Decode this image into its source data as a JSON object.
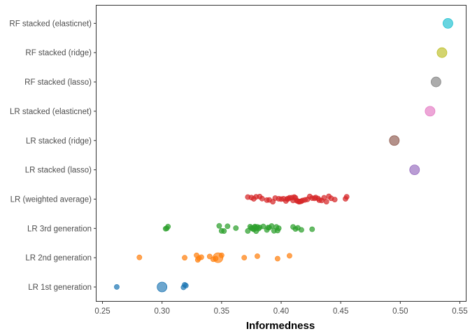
{
  "chart_data": {
    "type": "scatter",
    "title": "",
    "xlabel": "Informedness",
    "ylabel": "",
    "xlim": [
      0.245,
      0.555
    ],
    "x_ticks": [
      "0.25",
      "0.30",
      "0.35",
      "0.40",
      "0.45",
      "0.50",
      "0.55"
    ],
    "x_tick_values": [
      0.25,
      0.3,
      0.35,
      0.4,
      0.45,
      0.5,
      0.55
    ],
    "grid": false,
    "legend": "none",
    "categories": [
      "LR 1st generation",
      "LR 2nd generation",
      "LR 3rd generation",
      "LR (weighted average)",
      "LR stacked (lasso)",
      "LR stacked (ridge)",
      "LR stacked (elasticnet)",
      "RF stacked (lasso)",
      "RF stacked (ridge)",
      "RF stacked (elasticnet)"
    ],
    "series": [
      {
        "category": "LR 1st generation",
        "color": "#1f77b4",
        "points": [
          0.262,
          0.318,
          0.319,
          0.32
        ],
        "highlight": 0.3
      },
      {
        "category": "LR 2nd generation",
        "color": "#ff7f0e",
        "points": [
          0.281,
          0.319,
          0.329,
          0.33,
          0.331,
          0.333,
          0.34,
          0.343,
          0.345,
          0.35,
          0.369,
          0.38,
          0.397,
          0.407
        ],
        "highlight": 0.347
      },
      {
        "category": "LR 3rd generation",
        "color": "#2ca02c",
        "points": [
          0.303,
          0.304,
          0.305,
          0.348,
          0.35,
          0.352,
          0.355,
          0.362,
          0.372,
          0.374,
          0.375,
          0.376,
          0.377,
          0.378,
          0.378,
          0.379,
          0.379,
          0.38,
          0.381,
          0.382,
          0.385,
          0.388,
          0.389,
          0.39,
          0.392,
          0.394,
          0.396,
          0.397,
          0.398,
          0.41,
          0.412,
          0.414,
          0.417,
          0.426
        ]
      },
      {
        "category": "LR (weighted average)",
        "color": "#d62728",
        "points": [
          0.372,
          0.375,
          0.377,
          0.379,
          0.382,
          0.384,
          0.388,
          0.39,
          0.393,
          0.395,
          0.398,
          0.4,
          0.402,
          0.404,
          0.405,
          0.406,
          0.407,
          0.409,
          0.41,
          0.411,
          0.412,
          0.413,
          0.414,
          0.415,
          0.416,
          0.417,
          0.418,
          0.42,
          0.422,
          0.424,
          0.426,
          0.428,
          0.429,
          0.431,
          0.432,
          0.434,
          0.436,
          0.438,
          0.44,
          0.442,
          0.445,
          0.454,
          0.455
        ]
      },
      {
        "category": "LR stacked (lasso)",
        "color": "#9467bd",
        "highlight": 0.512
      },
      {
        "category": "LR stacked (ridge)",
        "color": "#8c564b",
        "highlight": 0.495
      },
      {
        "category": "LR stacked (elasticnet)",
        "color": "#e377c2",
        "highlight": 0.525
      },
      {
        "category": "RF stacked (lasso)",
        "color": "#7f7f7f",
        "highlight": 0.53
      },
      {
        "category": "RF stacked (ridge)",
        "color": "#bcbd22",
        "highlight": 0.535
      },
      {
        "category": "RF stacked (elasticnet)",
        "color": "#17becf",
        "highlight": 0.54
      }
    ]
  }
}
